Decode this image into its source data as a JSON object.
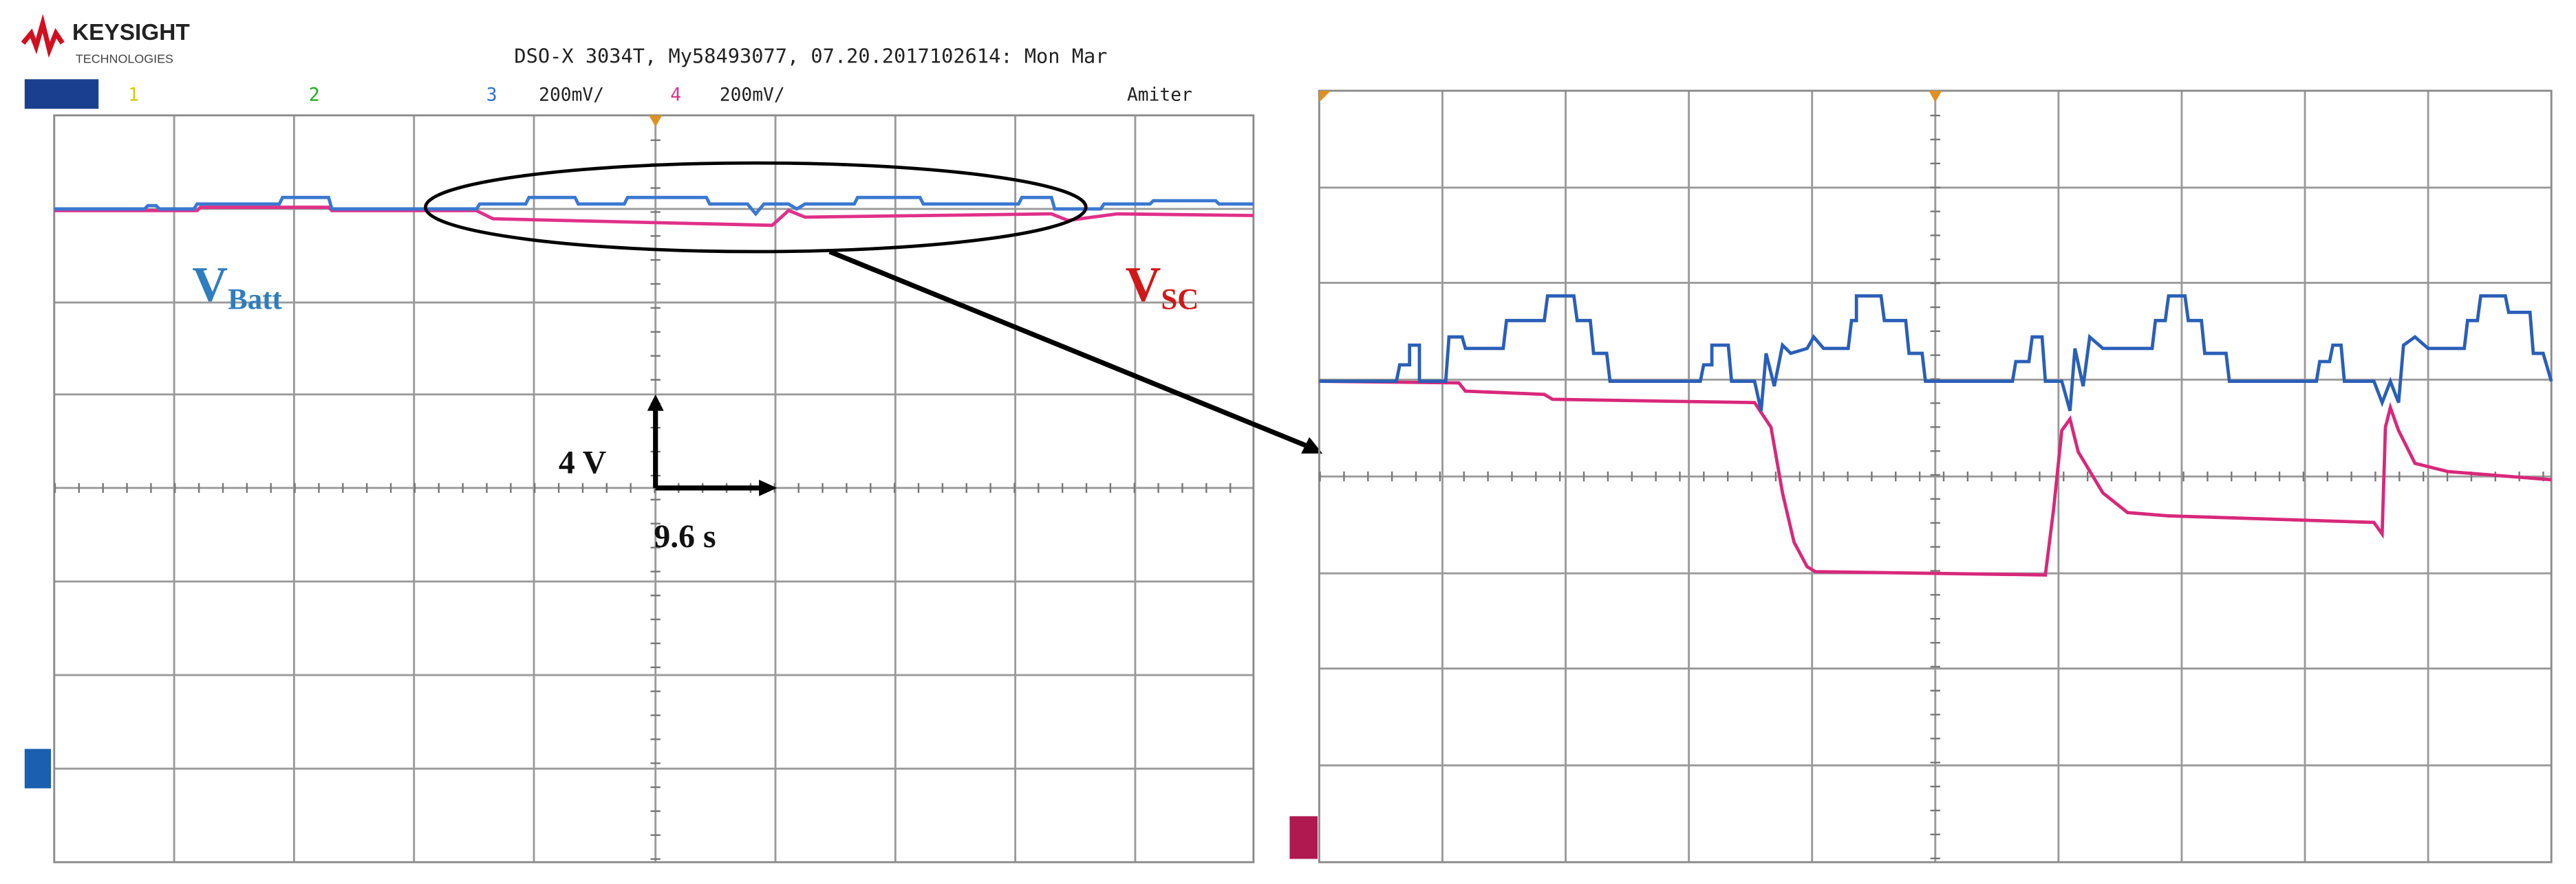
{
  "logo": {
    "brand": "KEYSIGHT",
    "sub": "TECHNOLOGIES"
  },
  "header": {
    "title": "DSO-X 3034T, My58493077, 07.20.2017102614: Mon Mar",
    "channels": [
      "1",
      "2",
      "3",
      "200mV/",
      "4",
      "200mV/",
      "Amiter"
    ]
  },
  "labels": {
    "vbatt": {
      "main": "V",
      "sub": "Batt"
    },
    "vsc": {
      "main": "V",
      "sub": "SC"
    },
    "volt_scale": "4 V",
    "time_scale": "9.6 s"
  }
}
